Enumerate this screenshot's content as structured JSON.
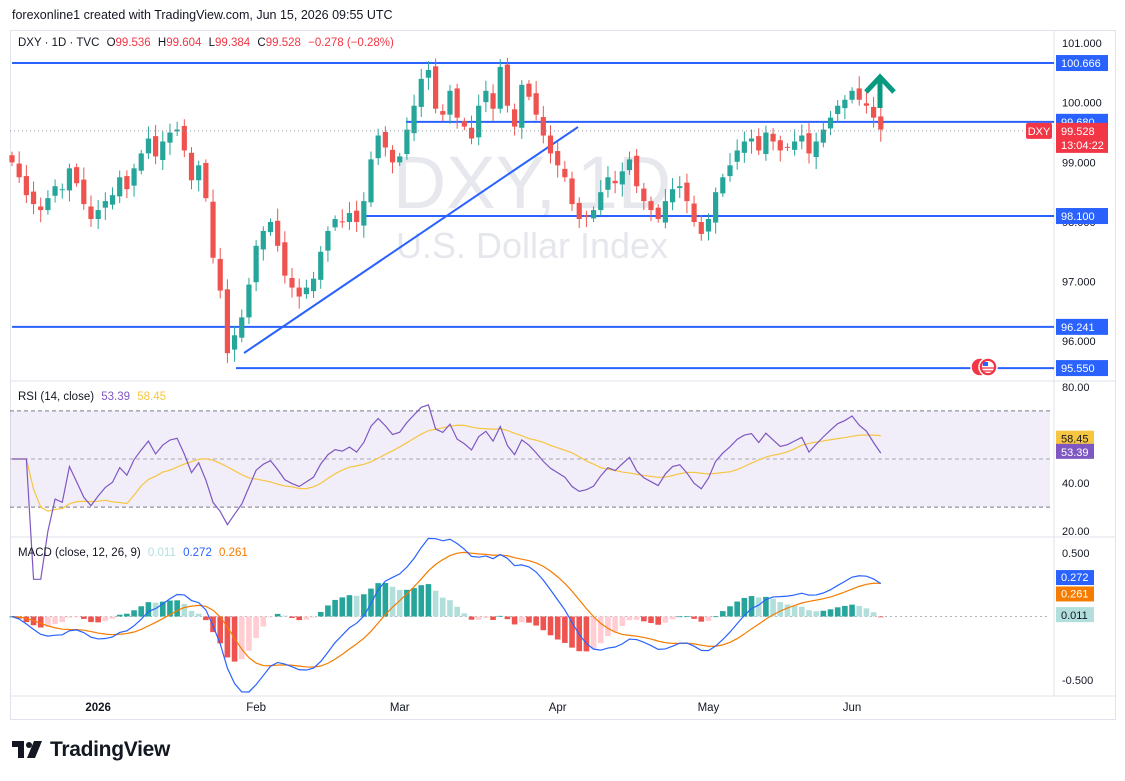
{
  "header": {
    "text": "forexonline1 created with TradingView.com, Jun 15, 2026 09:55 UTC"
  },
  "footer": {
    "brand": "TradingView"
  },
  "legend": {
    "symbol": "DXY · 1D · TVC",
    "o_label": "O",
    "o": "99.536",
    "h_label": "H",
    "h": "99.604",
    "l_label": "L",
    "l": "99.384",
    "c_label": "C",
    "c": "99.528",
    "change": "−0.278 (−0.28%)"
  },
  "watermark": {
    "symbol": "DXY, 1D",
    "name": "U.S. Dollar Index"
  },
  "colors": {
    "up": "#26a69a",
    "down": "#ef5350",
    "line": "#2962ff",
    "rsi": "#7e57c2",
    "rsi_ma": "#f6c542",
    "macd_line": "#2962ff",
    "signal_line": "#f57c00",
    "hist_up_strong": "#26a69a",
    "hist_up_weak": "#b2dfdb",
    "hist_down_strong": "#ef5350",
    "hist_down_weak": "#ffcdd2"
  },
  "chart_data": [
    {
      "type": "candlestick",
      "title": "U.S. Dollar Index",
      "ylim": [
        95.35,
        101.22
      ],
      "price_ticks": [
        "101.000",
        "100.000",
        "99.000",
        "98.000",
        "97.000",
        "96.000"
      ],
      "x_labels": [
        {
          "label": "2026",
          "index": 12
        },
        {
          "label": "Feb",
          "index": 34
        },
        {
          "label": "Mar",
          "index": 54
        },
        {
          "label": "Apr",
          "index": 76
        },
        {
          "label": "May",
          "index": 97
        },
        {
          "label": "Jun",
          "index": 117
        }
      ],
      "closes": [
        99.0,
        98.75,
        98.45,
        98.3,
        98.2,
        98.4,
        98.6,
        98.55,
        98.9,
        98.65,
        98.3,
        98.05,
        98.2,
        98.35,
        98.45,
        98.75,
        98.55,
        98.9,
        99.15,
        99.4,
        99.1,
        99.35,
        99.5,
        99.55,
        99.2,
        98.7,
        98.95,
        98.4,
        97.4,
        96.85,
        95.8,
        96.1,
        96.4,
        96.95,
        97.6,
        97.85,
        98.0,
        97.6,
        97.1,
        96.9,
        96.75,
        96.9,
        97.05,
        97.5,
        97.85,
        98.05,
        98.0,
        98.15,
        98.0,
        98.35,
        99.05,
        99.45,
        99.25,
        99.0,
        99.1,
        99.55,
        99.95,
        100.4,
        100.55,
        99.9,
        99.8,
        100.2,
        99.75,
        99.6,
        99.4,
        99.95,
        100.2,
        99.9,
        100.6,
        99.95,
        99.6,
        100.3,
        100.1,
        99.8,
        99.45,
        99.15,
        98.95,
        98.75,
        98.3,
        98.05,
        98.1,
        98.2,
        98.5,
        98.75,
        98.65,
        98.85,
        99.05,
        98.6,
        98.35,
        98.2,
        98.05,
        98.35,
        98.55,
        98.6,
        98.35,
        98.0,
        97.8,
        98.05,
        98.5,
        98.75,
        98.95,
        99.2,
        99.35,
        99.4,
        99.2,
        99.5,
        99.35,
        99.2,
        99.25,
        99.35,
        99.45,
        99.15,
        99.35,
        99.55,
        99.75,
        99.95,
        100.05,
        100.2,
        100.05,
        99.95,
        99.75,
        99.55
      ],
      "highlight_levels": [
        {
          "value": "100.666",
          "label": "100.666"
        },
        {
          "value": "99.680",
          "label": "99.680"
        },
        {
          "value": "98.100",
          "label": "98.100"
        },
        {
          "value": "96.241",
          "label": "96.241"
        },
        {
          "value": "95.550",
          "label": "95.550"
        }
      ],
      "current_price": {
        "value": "99.528",
        "symbol_tag": "DXY",
        "countdown": "13:04:22"
      },
      "annotations": [
        "trendline",
        "up-arrow"
      ]
    },
    {
      "type": "line",
      "title": "RSI (14, close)",
      "series": [
        {
          "name": "RSI",
          "value_label": "53.39",
          "value": 53.39
        },
        {
          "name": "RSI MA",
          "value_label": "58.45",
          "value": 58.45
        }
      ],
      "ylim": [
        18,
        82
      ],
      "ticks": [
        "80.00",
        "40.00",
        "20.00"
      ],
      "bands": [
        30,
        70
      ],
      "midline": 50
    },
    {
      "type": "line",
      "title": "MACD (close, 12, 26, 9)",
      "series": [
        {
          "name": "histogram",
          "value_label": "0.011",
          "value": 0.011
        },
        {
          "name": "MACD",
          "value_label": "0.272",
          "value": 0.272
        },
        {
          "name": "Signal",
          "value_label": "0.261",
          "value": 0.261
        }
      ],
      "ylim": [
        -0.62,
        0.62
      ],
      "ticks": [
        "0.500",
        "-0.500"
      ]
    }
  ]
}
